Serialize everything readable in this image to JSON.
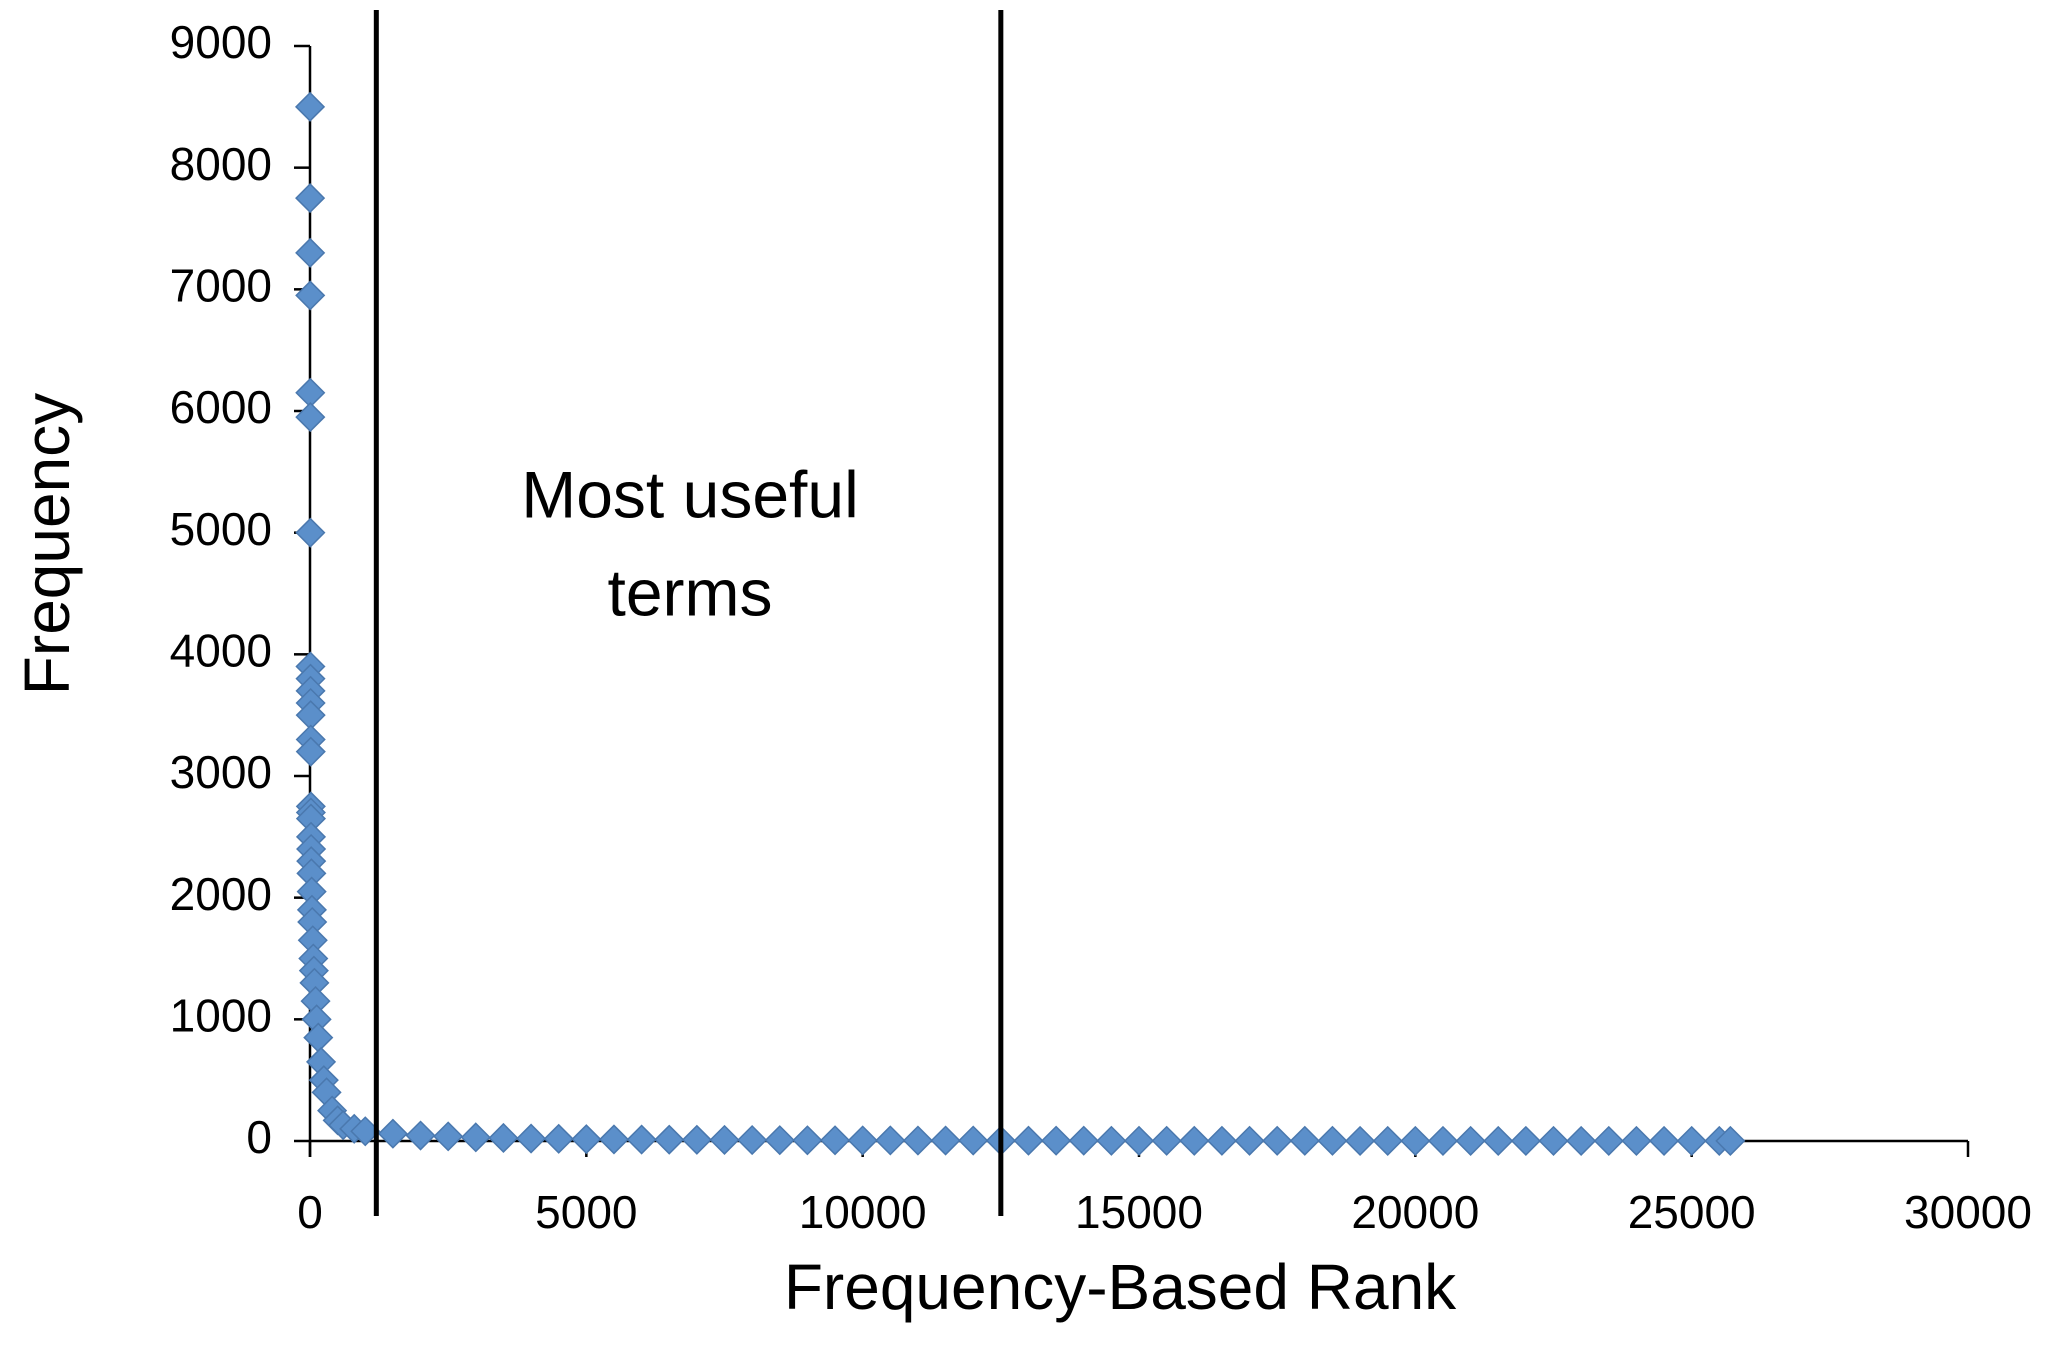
{
  "chart_data": {
    "type": "scatter",
    "xlabel": "Frequency-Based Rank",
    "ylabel": "Frequency",
    "annotation": [
      "Most useful",
      "terms"
    ],
    "color": "#5b8fca",
    "marker": "diamond",
    "xlim": [
      0,
      30000
    ],
    "ylim": [
      0,
      9000
    ],
    "xticks": [
      0,
      5000,
      10000,
      15000,
      20000,
      25000,
      30000
    ],
    "yticks": [
      0,
      1000,
      2000,
      3000,
      4000,
      5000,
      6000,
      7000,
      8000,
      9000
    ],
    "vlines": [
      1200,
      12500
    ],
    "x": [
      1,
      2,
      3,
      4,
      5,
      6,
      7,
      8,
      9,
      10,
      11,
      12,
      13,
      14,
      15,
      16,
      17,
      18,
      20,
      22,
      25,
      30,
      35,
      40,
      50,
      60,
      70,
      80,
      100,
      120,
      150,
      200,
      250,
      300,
      400,
      500,
      600,
      800,
      1000,
      1500,
      2000,
      2500,
      3000,
      3500,
      4000,
      4500,
      5000,
      5500,
      6000,
      6500,
      7000,
      7500,
      8000,
      8500,
      9000,
      9500,
      10000,
      10500,
      11000,
      11500,
      12000,
      12500,
      13000,
      13500,
      14000,
      14500,
      15000,
      15500,
      16000,
      16500,
      17000,
      17500,
      18000,
      18500,
      19000,
      19500,
      20000,
      20500,
      21000,
      21500,
      22000,
      22500,
      23000,
      23500,
      24000,
      24500,
      25000,
      25500,
      25700
    ],
    "values": [
      8500,
      7750,
      7300,
      6950,
      6150,
      5950,
      5000,
      3900,
      3800,
      3700,
      3600,
      3500,
      3300,
      3200,
      2750,
      2700,
      2650,
      2500,
      2400,
      2300,
      2200,
      2050,
      1900,
      1800,
      1650,
      1500,
      1400,
      1300,
      1150,
      1000,
      850,
      650,
      500,
      400,
      250,
      170,
      130,
      100,
      80,
      60,
      45,
      38,
      30,
      25,
      20,
      18,
      15,
      13,
      12,
      11,
      10,
      9,
      8,
      7,
      6,
      6,
      5,
      5,
      4,
      4,
      4,
      3,
      3,
      3,
      3,
      2,
      2,
      2,
      2,
      2,
      2,
      2,
      2,
      2,
      1,
      1,
      1,
      1,
      1,
      1,
      1,
      1,
      1,
      1,
      1,
      1,
      1,
      1,
      1
    ]
  }
}
